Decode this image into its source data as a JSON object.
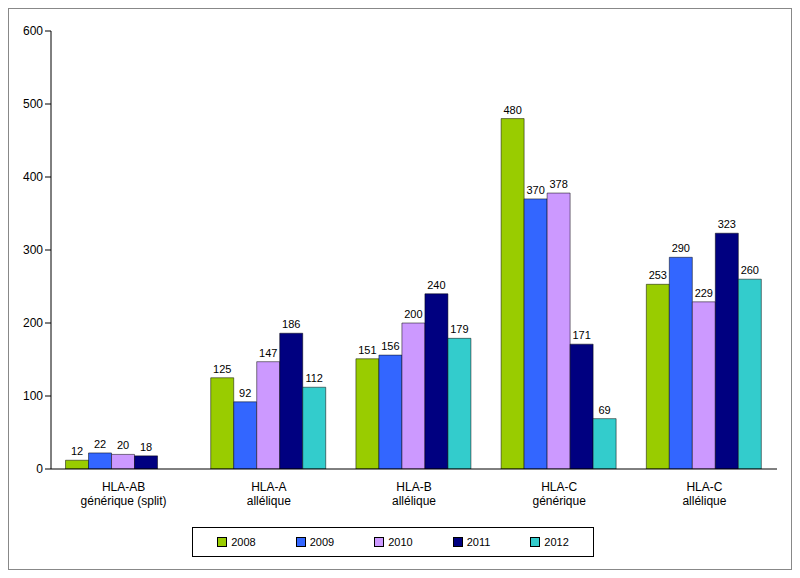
{
  "chart_data": {
    "type": "bar",
    "categories": [
      "HLA-AB\ngénérique (split)",
      "HLA-A\nallélique",
      "HLA-B\nallélique",
      "HLA-C\ngénérique",
      "HLA-C\nallélique"
    ],
    "series": [
      {
        "name": "2008",
        "color": "#99cc00",
        "values": [
          12,
          125,
          151,
          480,
          253
        ]
      },
      {
        "name": "2009",
        "color": "#3366ff",
        "values": [
          22,
          92,
          156,
          370,
          290
        ]
      },
      {
        "name": "2010",
        "color": "#cc99ff",
        "values": [
          20,
          147,
          200,
          378,
          229
        ]
      },
      {
        "name": "2011",
        "color": "#000080",
        "values": [
          18,
          186,
          240,
          171,
          323
        ]
      },
      {
        "name": "2012",
        "color": "#33cccc",
        "values": [
          0,
          112,
          179,
          69,
          260
        ]
      }
    ],
    "ylim": [
      0,
      600
    ],
    "yticks": [
      0,
      100,
      200,
      300,
      400,
      500,
      600
    ],
    "grid": false,
    "data_labels": true,
    "legend": "bottom"
  }
}
